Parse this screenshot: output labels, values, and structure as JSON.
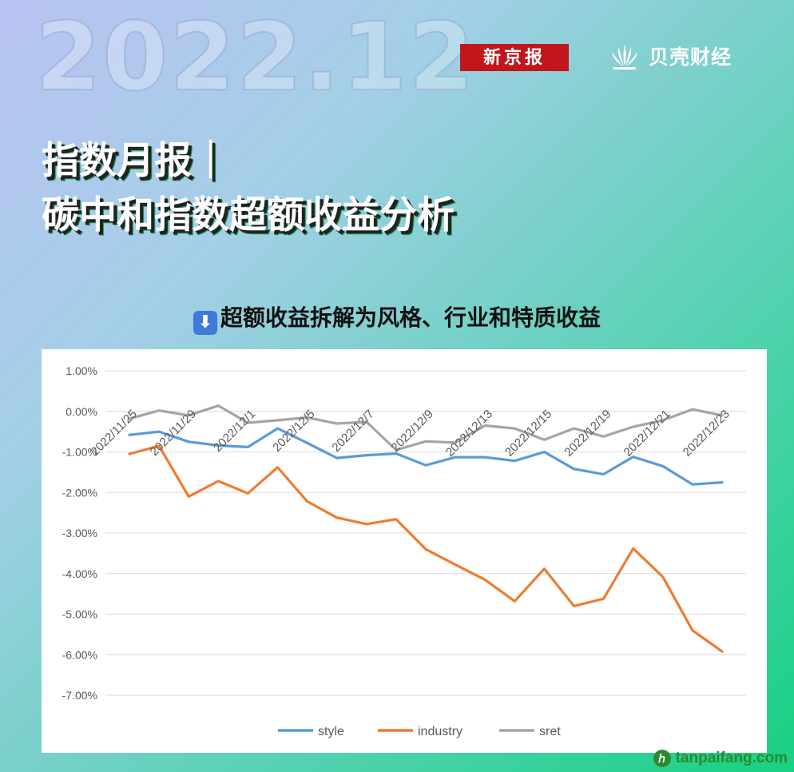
{
  "header": {
    "big_year": "2022.12",
    "brand_xjb": "新京报",
    "brand_bk": "贝壳财经"
  },
  "headline": {
    "line1": "指数月报｜",
    "line2": "碳中和指数超额收益分析"
  },
  "subtitle": {
    "arrow": "⬇",
    "text": "超额收益拆解为风格、行业和特质收益"
  },
  "watermark": {
    "icon": "ℎ",
    "text": "tanpaifang.com"
  },
  "colors": {
    "style": "#5b9bd5",
    "industry": "#ed7d31",
    "sret": "#a5a5a5",
    "grid": "#d9d9d9",
    "brand_red": "#c0161c"
  },
  "chart_data": {
    "type": "line",
    "ylim": [
      -7,
      1
    ],
    "yticks": [
      1,
      0,
      -1,
      -2,
      -3,
      -4,
      -5,
      -6,
      -7
    ],
    "ytick_labels": [
      "1.00%",
      "0.00%",
      "-1.00%",
      "-2.00%",
      "-3.00%",
      "-4.00%",
      "-5.00%",
      "-6.00%",
      "-7.00%"
    ],
    "point_count": 21,
    "x_tick_labels": [
      {
        "index": 0,
        "label": "2022/11/25"
      },
      {
        "index": 2,
        "label": "2022/11/29"
      },
      {
        "index": 4,
        "label": "2022/12/1"
      },
      {
        "index": 6,
        "label": "2022/12/5"
      },
      {
        "index": 8,
        "label": "2022/12/7"
      },
      {
        "index": 10,
        "label": "2022/12/9"
      },
      {
        "index": 12,
        "label": "2022/12/13"
      },
      {
        "index": 14,
        "label": "2022/12/15"
      },
      {
        "index": 16,
        "label": "2022/12/19"
      },
      {
        "index": 18,
        "label": "2022/12/21"
      },
      {
        "index": 20,
        "label": "2022/12/23"
      }
    ],
    "grid": true,
    "legend_position": "bottom",
    "series": [
      {
        "name": "style",
        "values": [
          -0.58,
          -0.5,
          -0.75,
          -0.84,
          -0.88,
          -0.42,
          -0.78,
          -1.15,
          -1.08,
          -1.04,
          -1.33,
          -1.13,
          -1.13,
          -1.22,
          -1.0,
          -1.42,
          -1.55,
          -1.12,
          -1.35,
          -1.8,
          -1.75
        ]
      },
      {
        "name": "industry",
        "values": [
          -1.05,
          -0.85,
          -2.1,
          -1.72,
          -2.02,
          -1.38,
          -2.22,
          -2.62,
          -2.78,
          -2.66,
          -3.4,
          -3.78,
          -4.15,
          -4.68,
          -3.88,
          -4.8,
          -4.62,
          -3.38,
          -4.08,
          -5.4,
          -5.92
        ]
      },
      {
        "name": "sret",
        "values": [
          -0.18,
          0.02,
          -0.1,
          0.14,
          -0.28,
          -0.22,
          -0.15,
          -0.3,
          -0.26,
          -0.95,
          -0.74,
          -0.77,
          -0.35,
          -0.42,
          -0.7,
          -0.42,
          -0.62,
          -0.38,
          -0.22,
          0.05,
          -0.1
        ]
      }
    ]
  }
}
